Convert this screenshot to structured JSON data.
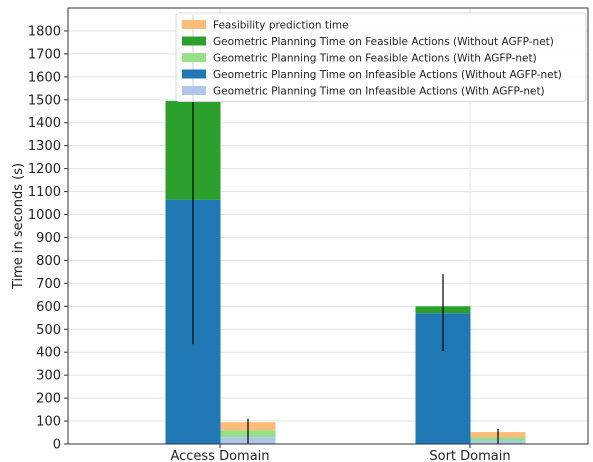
{
  "chart_data": {
    "type": "bar",
    "stacked": true,
    "categories": [
      "Access Domain",
      "Sort Domain"
    ],
    "ylabel": "Time in seconds (s)",
    "xlabel": "",
    "ylim": [
      0,
      1900
    ],
    "yticks": [
      0,
      100,
      200,
      300,
      400,
      500,
      600,
      700,
      800,
      900,
      1000,
      1100,
      1200,
      1300,
      1400,
      1500,
      1600,
      1700,
      1800
    ],
    "grid": true,
    "legend_position": "top-right",
    "bars": [
      {
        "category": "Access Domain",
        "group": "Without AGFP-net",
        "stack": [
          {
            "series": "Geometric Planning Time on Infeasible Actions (Without AGFP-net)",
            "value": 1065
          },
          {
            "series": "Geometric Planning Time on Feasible Actions (Without AGFP-net)",
            "value": 430
          }
        ],
        "error": [
          435,
          1870
        ]
      },
      {
        "category": "Access Domain",
        "group": "With AGFP-net",
        "stack": [
          {
            "series": "Geometric Planning Time on Infeasible Actions (With AGFP-net)",
            "value": 30
          },
          {
            "series": "Geometric Planning Time on Feasible Actions (With AGFP-net)",
            "value": 30
          },
          {
            "series": "Feasibility prediction time",
            "value": 35
          }
        ],
        "error": [
          0,
          110
        ]
      },
      {
        "category": "Sort Domain",
        "group": "Without AGFP-net",
        "stack": [
          {
            "series": "Geometric Planning Time on Infeasible Actions (Without AGFP-net)",
            "value": 570
          },
          {
            "series": "Geometric Planning Time on Feasible Actions (Without AGFP-net)",
            "value": 30
          }
        ],
        "error": [
          405,
          740
        ]
      },
      {
        "category": "Sort Domain",
        "group": "With AGFP-net",
        "stack": [
          {
            "series": "Geometric Planning Time on Infeasible Actions (With AGFP-net)",
            "value": 15
          },
          {
            "series": "Geometric Planning Time on Feasible Actions (With AGFP-net)",
            "value": 15
          },
          {
            "series": "Feasibility prediction time",
            "value": 22
          }
        ],
        "error": [
          0,
          65
        ]
      }
    ],
    "legend": [
      {
        "name": "Feasibility prediction time",
        "color": "#ffbb78"
      },
      {
        "name": "Geometric Planning Time on Feasible Actions (Without AGFP-net)",
        "color": "#2ca02c"
      },
      {
        "name": "Geometric Planning Time on Feasible Actions (With AGFP-net)",
        "color": "#98df8a"
      },
      {
        "name": "Geometric Planning Time on Infeasible Actions (Without AGFP-net)",
        "color": "#1f77b4"
      },
      {
        "name": "Geometric Planning Time on Infeasible Actions (With AGFP-net)",
        "color": "#aec7e8"
      }
    ]
  }
}
